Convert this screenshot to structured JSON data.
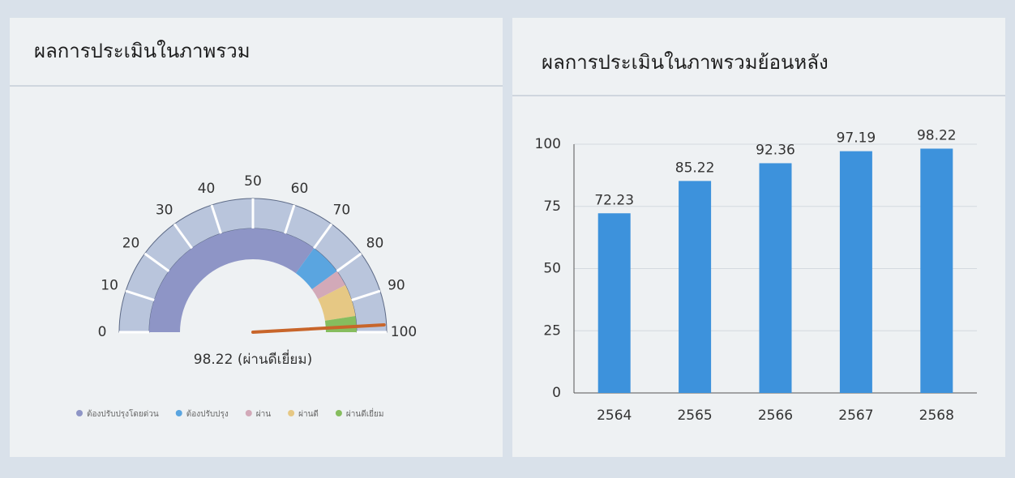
{
  "chart_data": [
    {
      "type": "gauge",
      "title": "ผลการประเมินในภาพรวม",
      "values": [
        98.22
      ],
      "value_labels": [
        "98.22 (ผ่านดีเยี่ยม)"
      ],
      "xlim": [
        0,
        100
      ],
      "xticks": [
        0,
        10,
        20,
        30,
        40,
        50,
        60,
        70,
        80,
        90,
        100
      ],
      "needle_color": "#c8652a",
      "series": [
        {
          "name": "ต้องปรับปรุงโดยด่วน",
          "color": "#8e95c6",
          "range": [
            0,
            70
          ]
        },
        {
          "name": "ต้องปรับปรุง",
          "color": "#5aa5e0",
          "range": [
            70,
            80
          ]
        },
        {
          "name": "ผ่าน",
          "color": "#d2a9b8",
          "range": [
            80,
            85
          ]
        },
        {
          "name": "ผ่านดี",
          "color": "#e6c884",
          "range": [
            85,
            95
          ]
        },
        {
          "name": "ผ่านดีเยี่ยม",
          "color": "#86bd5e",
          "range": [
            95,
            100
          ]
        }
      ]
    },
    {
      "type": "bar",
      "title": "ผลการประเมินในภาพรวมย้อนหลัง",
      "categories": [
        "2564",
        "2565",
        "2566",
        "2567",
        "2568"
      ],
      "values": [
        72.23,
        85.22,
        92.36,
        97.19,
        98.22
      ],
      "color": "#3d92dc",
      "ylim": [
        0,
        100
      ],
      "yticks": [
        0,
        25,
        50,
        75,
        100
      ],
      "grid": true
    }
  ]
}
